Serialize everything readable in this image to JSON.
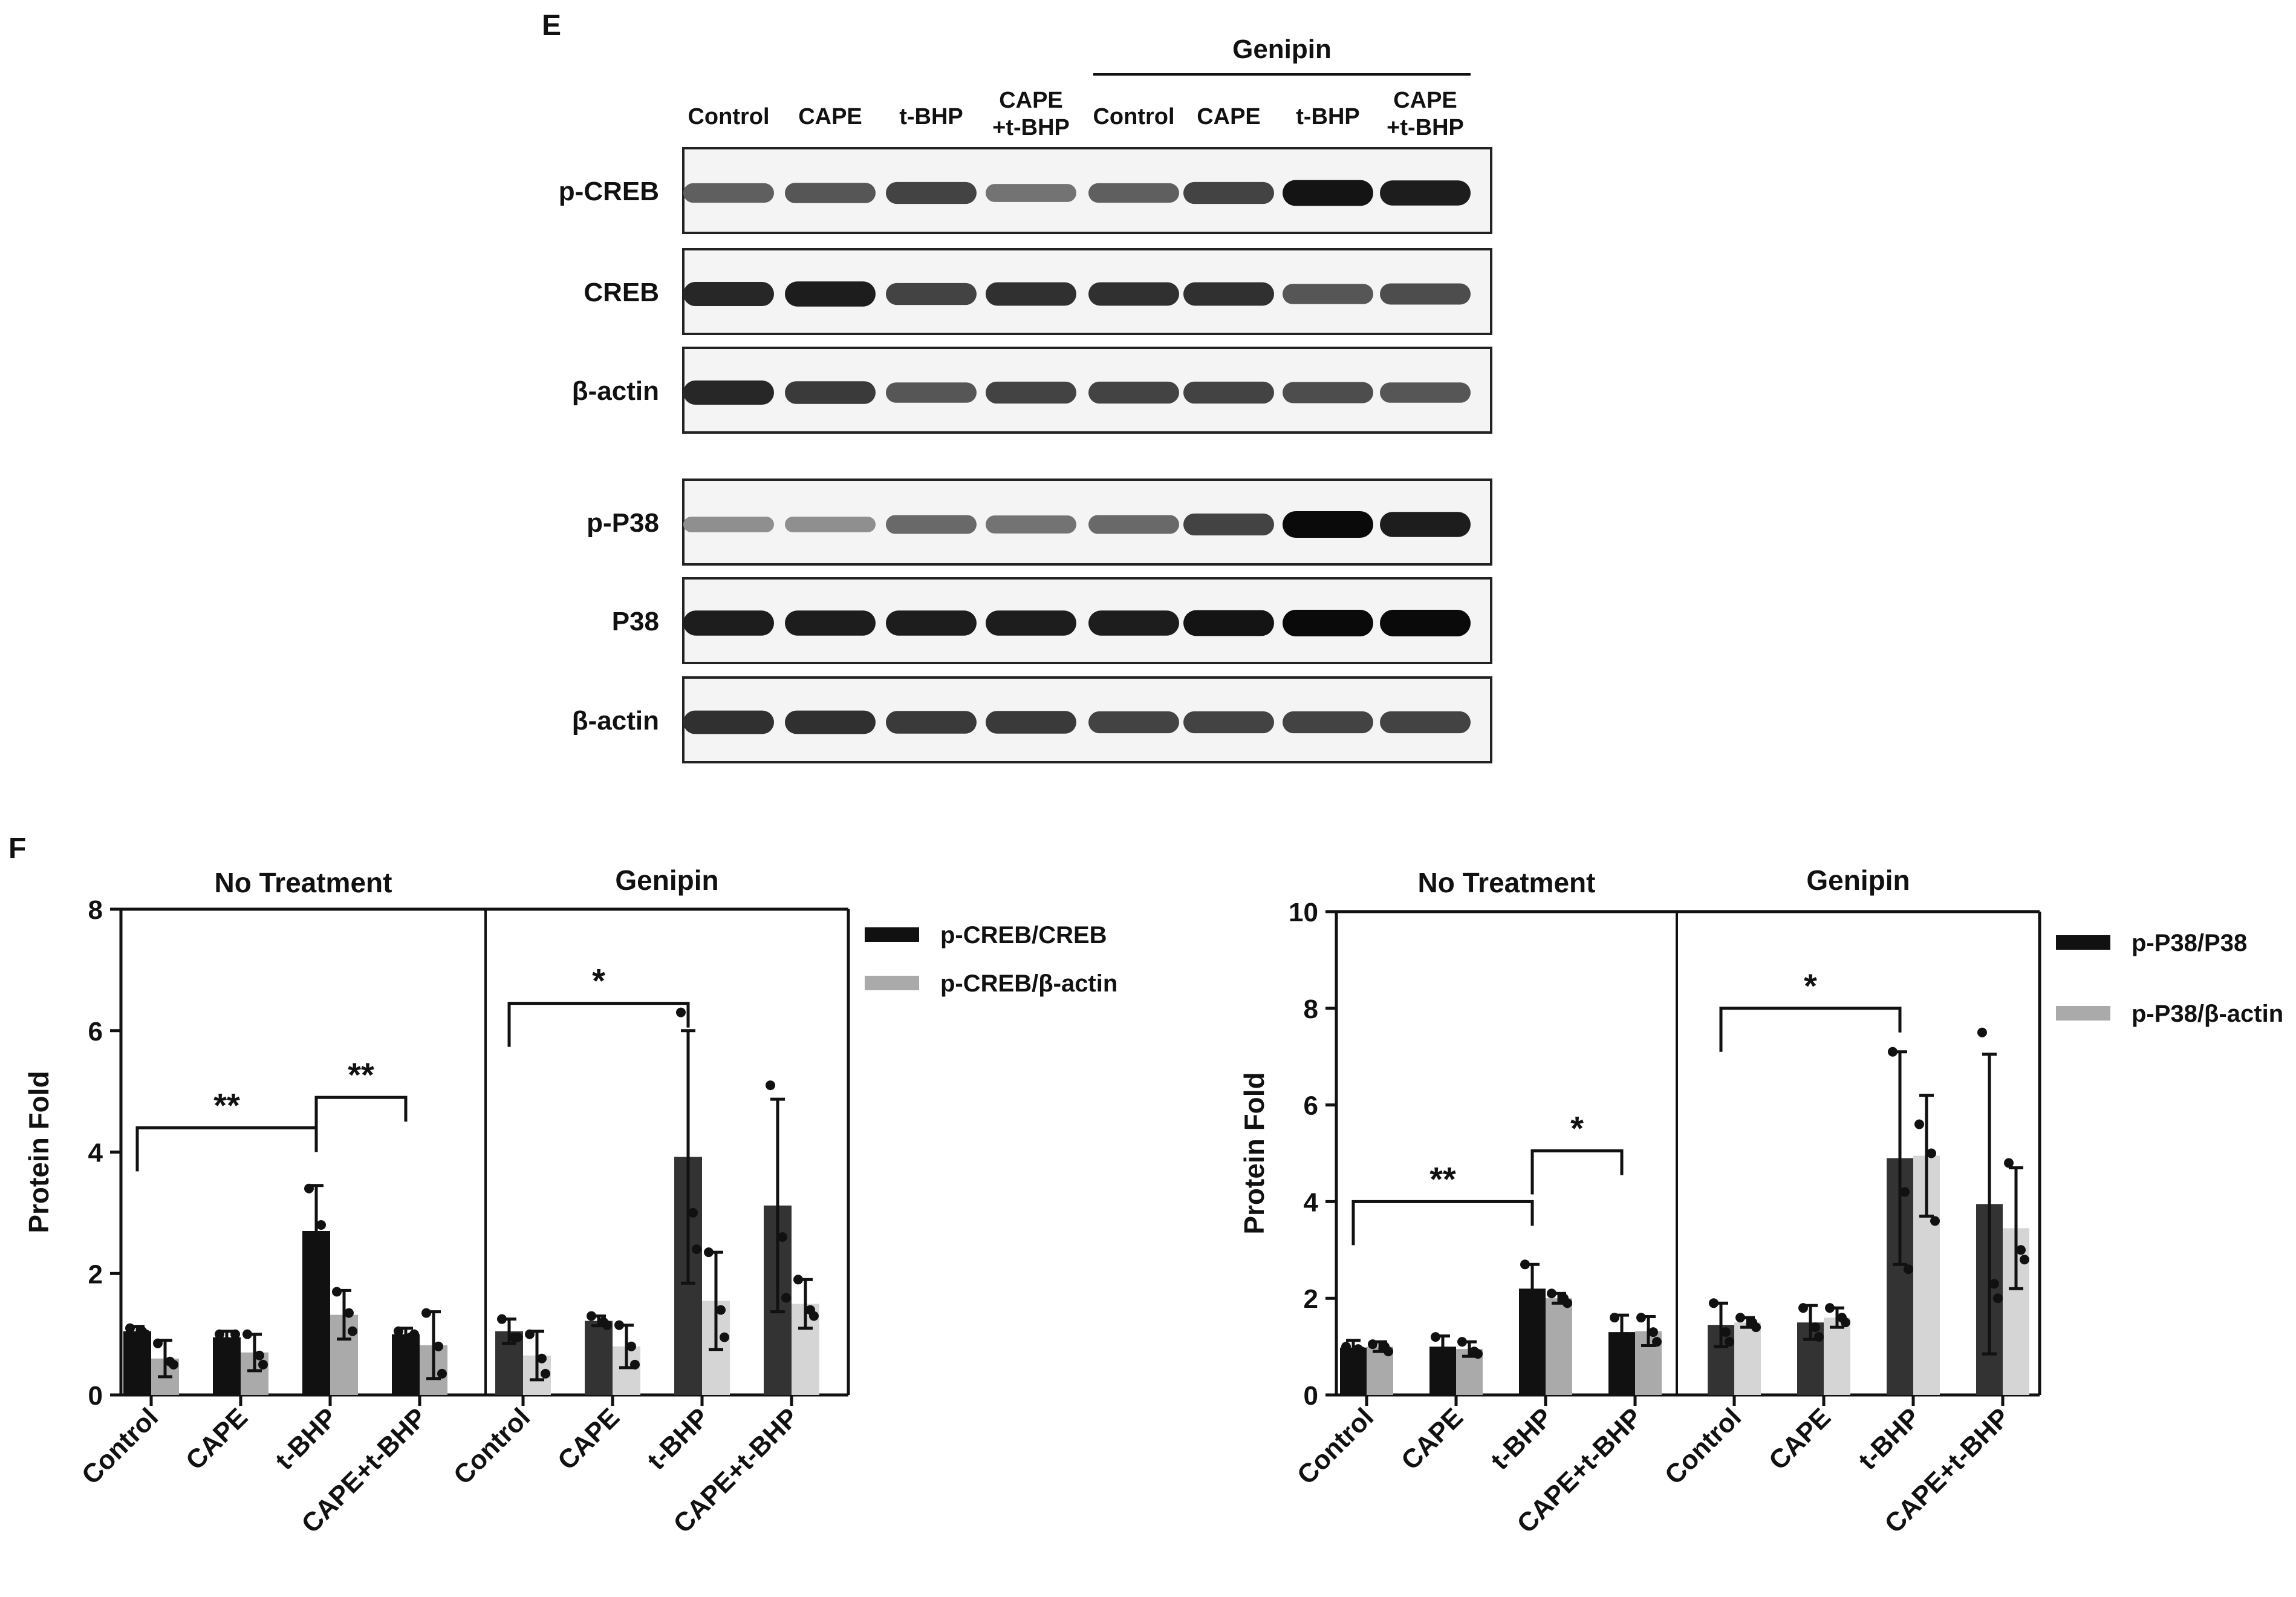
{
  "panels": {
    "blot": "E",
    "charts": "F"
  },
  "blot": {
    "group_label": "Genipin",
    "lanes": [
      {
        "line1": "Control",
        "line2": ""
      },
      {
        "line1": "CAPE",
        "line2": ""
      },
      {
        "line1": "t-BHP",
        "line2": ""
      },
      {
        "line1": "CAPE",
        "line2": "+t-BHP"
      },
      {
        "line1": "Control",
        "line2": ""
      },
      {
        "line1": "CAPE",
        "line2": ""
      },
      {
        "line1": "t-BHP",
        "line2": ""
      },
      {
        "line1": "CAPE",
        "line2": "+t-BHP"
      }
    ],
    "rows": [
      {
        "label": "p-CREB",
        "intensity": [
          0.55,
          0.6,
          0.7,
          0.45,
          0.55,
          0.7,
          0.95,
          0.9
        ]
      },
      {
        "label": "CREB",
        "intensity": [
          0.85,
          0.9,
          0.7,
          0.8,
          0.8,
          0.8,
          0.6,
          0.65
        ]
      },
      {
        "label": "β-actin",
        "intensity": [
          0.85,
          0.75,
          0.6,
          0.7,
          0.7,
          0.7,
          0.65,
          0.6
        ]
      },
      {
        "label": "p-P38",
        "intensity": [
          0.3,
          0.3,
          0.5,
          0.45,
          0.5,
          0.7,
          1.0,
          0.9
        ]
      },
      {
        "label": "P38",
        "intensity": [
          0.9,
          0.9,
          0.9,
          0.9,
          0.9,
          0.95,
          1.0,
          1.0
        ]
      },
      {
        "label": "β-actin",
        "intensity": [
          0.8,
          0.8,
          0.75,
          0.75,
          0.7,
          0.7,
          0.7,
          0.7
        ]
      }
    ]
  },
  "chart_data": [
    {
      "type": "bar",
      "title": "",
      "ylabel": "Protein Fold",
      "xlabel": "",
      "ylim": [
        0,
        8
      ],
      "yticks": [
        0,
        2,
        4,
        6,
        8
      ],
      "groups": [
        "No Treatment",
        "Genipin"
      ],
      "categories": [
        "Control",
        "CAPE",
        "t-BHP",
        "CAPE+t-BHP",
        "Control",
        "CAPE",
        "t-BHP",
        "CAPE+t-BHP"
      ],
      "series": [
        {
          "name": "p-CREB/CREB",
          "values": [
            1.05,
            0.95,
            2.7,
            1.0,
            1.05,
            1.22,
            3.92,
            3.12
          ],
          "err": [
            0.08,
            0.1,
            0.75,
            0.1,
            0.2,
            0.08,
            2.08,
            1.75
          ],
          "points": [
            [
              1.1,
              1.05,
              1.0
            ],
            [
              1.0,
              0.85,
              1.0
            ],
            [
              3.4,
              2.8,
              1.9
            ],
            [
              1.05,
              0.95,
              1.0
            ],
            [
              1.25,
              0.95,
              0.95
            ],
            [
              1.3,
              1.2,
              1.15
            ],
            [
              6.3,
              3.0,
              2.4
            ],
            [
              5.1,
              2.6,
              1.6
            ]
          ]
        },
        {
          "name": "p-CREB/β-actin",
          "values": [
            0.6,
            0.7,
            1.32,
            0.82,
            0.65,
            0.8,
            1.55,
            1.5
          ],
          "err": [
            0.3,
            0.3,
            0.4,
            0.55,
            0.4,
            0.35,
            0.8,
            0.4
          ],
          "points": [
            [
              0.85,
              0.55,
              0.5
            ],
            [
              1.0,
              0.65,
              0.5
            ],
            [
              1.7,
              1.35,
              1.05
            ],
            [
              1.35,
              0.8,
              0.35
            ],
            [
              1.0,
              0.6,
              0.35
            ],
            [
              1.15,
              0.8,
              0.5
            ],
            [
              2.35,
              1.4,
              0.95
            ],
            [
              1.9,
              1.4,
              1.3
            ]
          ]
        }
      ],
      "significance": [
        {
          "from": 0,
          "to": 2,
          "label": "**",
          "y": 4.4
        },
        {
          "from": 2,
          "to": 3,
          "label": "**",
          "y": 4.9
        },
        {
          "from": 4,
          "to": 6,
          "label": "*",
          "y": 6.45
        }
      ],
      "legend": "right"
    },
    {
      "type": "bar",
      "title": "",
      "ylabel": "Protein Fold",
      "xlabel": "",
      "ylim": [
        0,
        10
      ],
      "yticks": [
        0,
        2,
        4,
        6,
        8,
        10
      ],
      "groups": [
        "No Treatment",
        "Genipin"
      ],
      "categories": [
        "Control",
        "CAPE",
        "t-BHP",
        "CAPE+t-BHP",
        "Control",
        "CAPE",
        "t-BHP",
        "CAPE+t-BHP"
      ],
      "series": [
        {
          "name": "p-P38/P38",
          "values": [
            0.98,
            1.0,
            2.2,
            1.3,
            1.45,
            1.5,
            4.9,
            3.95
          ],
          "err": [
            0.15,
            0.22,
            0.5,
            0.35,
            0.45,
            0.35,
            2.2,
            3.1
          ],
          "points": [
            [
              1.0,
              0.95,
              0.9
            ],
            [
              1.2,
              0.9,
              0.85
            ],
            [
              2.7,
              2.0,
              1.9
            ],
            [
              1.6,
              1.2,
              1.1
            ],
            [
              1.9,
              1.3,
              1.1
            ],
            [
              1.8,
              1.4,
              1.2
            ],
            [
              7.1,
              4.2,
              2.6
            ],
            [
              7.5,
              2.3,
              2.0
            ]
          ]
        },
        {
          "name": "p-P38/β-actin",
          "values": [
            1.0,
            0.95,
            2.0,
            1.32,
            1.5,
            1.6,
            4.95,
            3.45
          ],
          "err": [
            0.1,
            0.15,
            0.1,
            0.3,
            0.1,
            0.2,
            1.25,
            1.25
          ],
          "points": [
            [
              1.05,
              1.0,
              0.9
            ],
            [
              1.1,
              0.9,
              0.85
            ],
            [
              2.1,
              2.0,
              1.9
            ],
            [
              1.6,
              1.3,
              1.1
            ],
            [
              1.6,
              1.5,
              1.4
            ],
            [
              1.8,
              1.6,
              1.5
            ],
            [
              5.6,
              5.0,
              3.6
            ],
            [
              4.8,
              3.0,
              2.8
            ]
          ]
        }
      ],
      "significance": [
        {
          "from": 0,
          "to": 2,
          "label": "**",
          "y": 4.0
        },
        {
          "from": 2,
          "to": 3,
          "label": "*",
          "y": 5.05
        },
        {
          "from": 4,
          "to": 6,
          "label": "*",
          "y": 8.0
        }
      ],
      "legend": "right"
    }
  ]
}
